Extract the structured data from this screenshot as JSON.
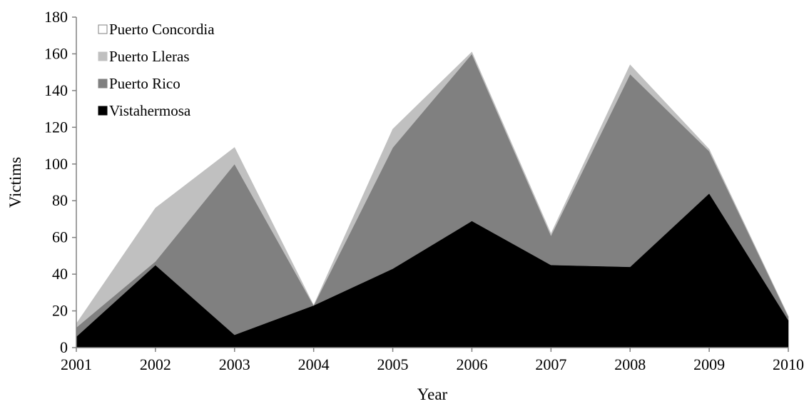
{
  "chart_data": {
    "type": "area",
    "stacked": true,
    "x": [
      "2001",
      "2002",
      "2003",
      "2004",
      "2005",
      "2006",
      "2007",
      "2008",
      "2009",
      "2010"
    ],
    "series": [
      {
        "name": "Vistahermosa",
        "values": [
          6,
          45,
          7,
          23,
          43,
          69,
          45,
          44,
          84,
          15
        ],
        "color": "#000000"
      },
      {
        "name": "Puerto Rico",
        "values": [
          5,
          2,
          93,
          0,
          66,
          91,
          16,
          105,
          23,
          2
        ],
        "color": "#808080"
      },
      {
        "name": "Puerto Lleras",
        "values": [
          2,
          29,
          9,
          0,
          10,
          1,
          1,
          5,
          1,
          0
        ],
        "color": "#c0c0c0"
      },
      {
        "name": "Puerto Concordia",
        "values": [
          0,
          0,
          0,
          0,
          0,
          0,
          0,
          0,
          0,
          0
        ],
        "color": "#ffffff"
      }
    ],
    "legend_order": [
      "Puerto Concordia",
      "Puerto Lleras",
      "Puerto Rico",
      "Vistahermosa"
    ],
    "xlabel": "Year",
    "ylabel": "Victims",
    "ylim": [
      0,
      180
    ],
    "yticks": [
      "0",
      "20",
      "40",
      "60",
      "80",
      "100",
      "120",
      "140",
      "160",
      "180"
    ],
    "grid": false,
    "legend_position": "top-left"
  }
}
